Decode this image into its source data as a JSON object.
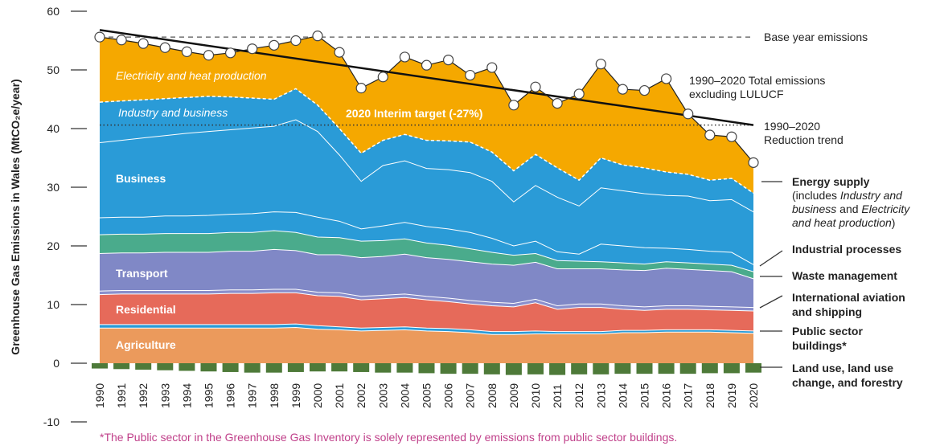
{
  "chart_data": {
    "type": "stacked_area",
    "y_label": "Greenhouse Gas Emissions in Wales (MtCO₂e/year)",
    "categories": [
      "1990",
      "1991",
      "1992",
      "1993",
      "1994",
      "1995",
      "1996",
      "1997",
      "1998",
      "1999",
      "2000",
      "2001",
      "2002",
      "2003",
      "2004",
      "2005",
      "2006",
      "2007",
      "2008",
      "2009",
      "2010",
      "2011",
      "2012",
      "2013",
      "2014",
      "2015",
      "2016",
      "2017",
      "2018",
      "2019",
      "2020"
    ],
    "ylim": [
      -10,
      60
    ],
    "yticks": [
      -10,
      0,
      10,
      20,
      30,
      40,
      50,
      60
    ],
    "series": [
      {
        "name": "Agriculture",
        "color": "#eb9a5c",
        "values": [
          6.0,
          6.0,
          6.0,
          6.0,
          6.0,
          6.0,
          6.0,
          6.0,
          6.0,
          6.1,
          5.8,
          5.7,
          5.5,
          5.6,
          5.7,
          5.5,
          5.4,
          5.2,
          4.9,
          4.9,
          5.0,
          5.0,
          5.0,
          5.0,
          5.2,
          5.2,
          5.3,
          5.3,
          5.3,
          5.2,
          5.1
        ]
      },
      {
        "name": "Public sector buildings*",
        "color": "#2a9bd7",
        "values": [
          0.6,
          0.6,
          0.6,
          0.6,
          0.6,
          0.6,
          0.6,
          0.6,
          0.6,
          0.6,
          0.6,
          0.5,
          0.5,
          0.5,
          0.5,
          0.5,
          0.5,
          0.5,
          0.5,
          0.5,
          0.5,
          0.4,
          0.4,
          0.4,
          0.4,
          0.4,
          0.4,
          0.4,
          0.4,
          0.4,
          0.4
        ]
      },
      {
        "name": "Residential",
        "color": "#e66a5a",
        "values": [
          5.1,
          5.2,
          5.2,
          5.2,
          5.2,
          5.2,
          5.3,
          5.3,
          5.4,
          5.3,
          5.1,
          5.2,
          4.8,
          4.9,
          5.0,
          4.8,
          4.6,
          4.4,
          4.4,
          4.2,
          4.8,
          3.8,
          4.1,
          4.1,
          3.6,
          3.4,
          3.5,
          3.5,
          3.4,
          3.4,
          3.4
        ]
      },
      {
        "name": "International aviation and shipping",
        "color": "#8a8fcc",
        "values": [
          0.6,
          0.6,
          0.6,
          0.6,
          0.6,
          0.6,
          0.6,
          0.6,
          0.6,
          0.6,
          0.6,
          0.6,
          0.6,
          0.6,
          0.6,
          0.6,
          0.6,
          0.6,
          0.6,
          0.6,
          0.6,
          0.6,
          0.6,
          0.6,
          0.6,
          0.6,
          0.6,
          0.6,
          0.6,
          0.6,
          0.6
        ]
      },
      {
        "name": "Transport",
        "color": "#8088c6",
        "values": [
          6.4,
          6.4,
          6.4,
          6.5,
          6.5,
          6.5,
          6.6,
          6.6,
          6.8,
          6.6,
          6.4,
          6.5,
          6.6,
          6.6,
          6.8,
          6.6,
          6.6,
          6.6,
          6.5,
          6.5,
          6.3,
          6.3,
          6.0,
          6.0,
          6.1,
          6.2,
          6.4,
          6.2,
          6.1,
          6.0,
          4.9
        ]
      },
      {
        "name": "Waste management",
        "color": "#4aab8c",
        "values": [
          3.2,
          3.2,
          3.2,
          3.2,
          3.2,
          3.2,
          3.2,
          3.2,
          3.2,
          3.1,
          3.0,
          2.9,
          2.8,
          2.7,
          2.6,
          2.5,
          2.4,
          2.2,
          2.0,
          1.7,
          1.5,
          1.4,
          1.3,
          1.2,
          1.2,
          1.1,
          1.1,
          1.1,
          1.1,
          1.1,
          1.2
        ]
      },
      {
        "name": "Industrial processes",
        "color": "#2a9bd7",
        "values": [
          2.9,
          2.9,
          2.9,
          3.0,
          3.0,
          3.1,
          3.1,
          3.2,
          3.2,
          3.4,
          3.4,
          2.8,
          2.1,
          2.5,
          2.8,
          2.8,
          2.8,
          2.8,
          2.4,
          1.6,
          2.1,
          1.5,
          1.2,
          3.0,
          2.9,
          2.8,
          2.3,
          2.3,
          2.2,
          2.2,
          1.2
        ]
      },
      {
        "name": "Business",
        "color": "#2a9bd7",
        "values": [
          12.8,
          13.1,
          13.5,
          13.7,
          14.1,
          14.3,
          14.4,
          14.6,
          14.6,
          15.8,
          14.6,
          11.3,
          8.1,
          10.3,
          10.5,
          9.9,
          10.1,
          10.2,
          9.7,
          7.5,
          9.5,
          9.3,
          8.2,
          9.6,
          9.4,
          9.2,
          9.0,
          9.1,
          8.6,
          9.0,
          9.0
        ]
      },
      {
        "name": "Industry and business",
        "color": "#2a9bd7",
        "values": [
          6.9,
          6.7,
          6.5,
          6.3,
          6.1,
          6.0,
          5.6,
          5.1,
          4.6,
          5.3,
          4.5,
          4.5,
          4.8,
          4.3,
          4.5,
          4.8,
          4.9,
          5.2,
          5.0,
          5.3,
          5.3,
          5.0,
          4.4,
          5.1,
          4.4,
          4.4,
          4.0,
          3.7,
          3.5,
          3.6,
          3.2
        ]
      },
      {
        "name": "Electricity and heat production",
        "color": "#f5a800",
        "values": [
          11.1,
          10.4,
          9.6,
          8.7,
          7.8,
          7.0,
          7.5,
          8.4,
          9.2,
          8.2,
          11.8,
          13.0,
          11.1,
          10.8,
          13.2,
          12.8,
          13.8,
          11.4,
          14.4,
          11.2,
          11.5,
          11.0,
          14.7,
          16.0,
          12.9,
          13.2,
          15.9,
          10.3,
          7.7,
          7.1,
          5.2
        ]
      }
    ],
    "lulucf": {
      "name": "Land use, land use change, and forestry",
      "color": "#4e7a39",
      "values": [
        -0.9,
        -1.0,
        -1.1,
        -1.2,
        -1.3,
        -1.4,
        -1.5,
        -1.6,
        -1.6,
        -1.5,
        -1.4,
        -1.4,
        -1.5,
        -1.6,
        -1.6,
        -1.7,
        -1.8,
        -1.8,
        -1.9,
        -2.0,
        -1.9,
        -2.0,
        -1.9,
        -1.9,
        -1.8,
        -1.8,
        -1.8,
        -1.8,
        -1.7,
        -1.7,
        -1.6
      ]
    },
    "total_label": [
      "1990–2020 Total emissions",
      "excluding LULUCF"
    ],
    "trend": {
      "label": [
        "1990–2020",
        "Reduction trend"
      ],
      "values": [
        56.8,
        40.6
      ]
    },
    "base_year": {
      "label": "Base year emissions",
      "value": 55.6
    },
    "interim_target": {
      "label": "2020 Interim target (-27%)",
      "value": 40.6
    },
    "energy_supply": {
      "title": "Energy supply",
      "note": [
        [
          {
            "text": "(includes ",
            "italic": false
          },
          {
            "text": "Industry and",
            "italic": true
          }
        ],
        [
          {
            "text": "business",
            "italic": true
          },
          {
            "text": " and ",
            "italic": false
          },
          {
            "text": "Electricity",
            "italic": true
          }
        ],
        [
          {
            "text": "and heat production",
            "italic": true
          },
          {
            "text": ")",
            "italic": false
          }
        ]
      ]
    },
    "footnote": "*The Public sector in the Greenhouse Gas Inventory is solely represented by emissions from public sector buildings."
  }
}
